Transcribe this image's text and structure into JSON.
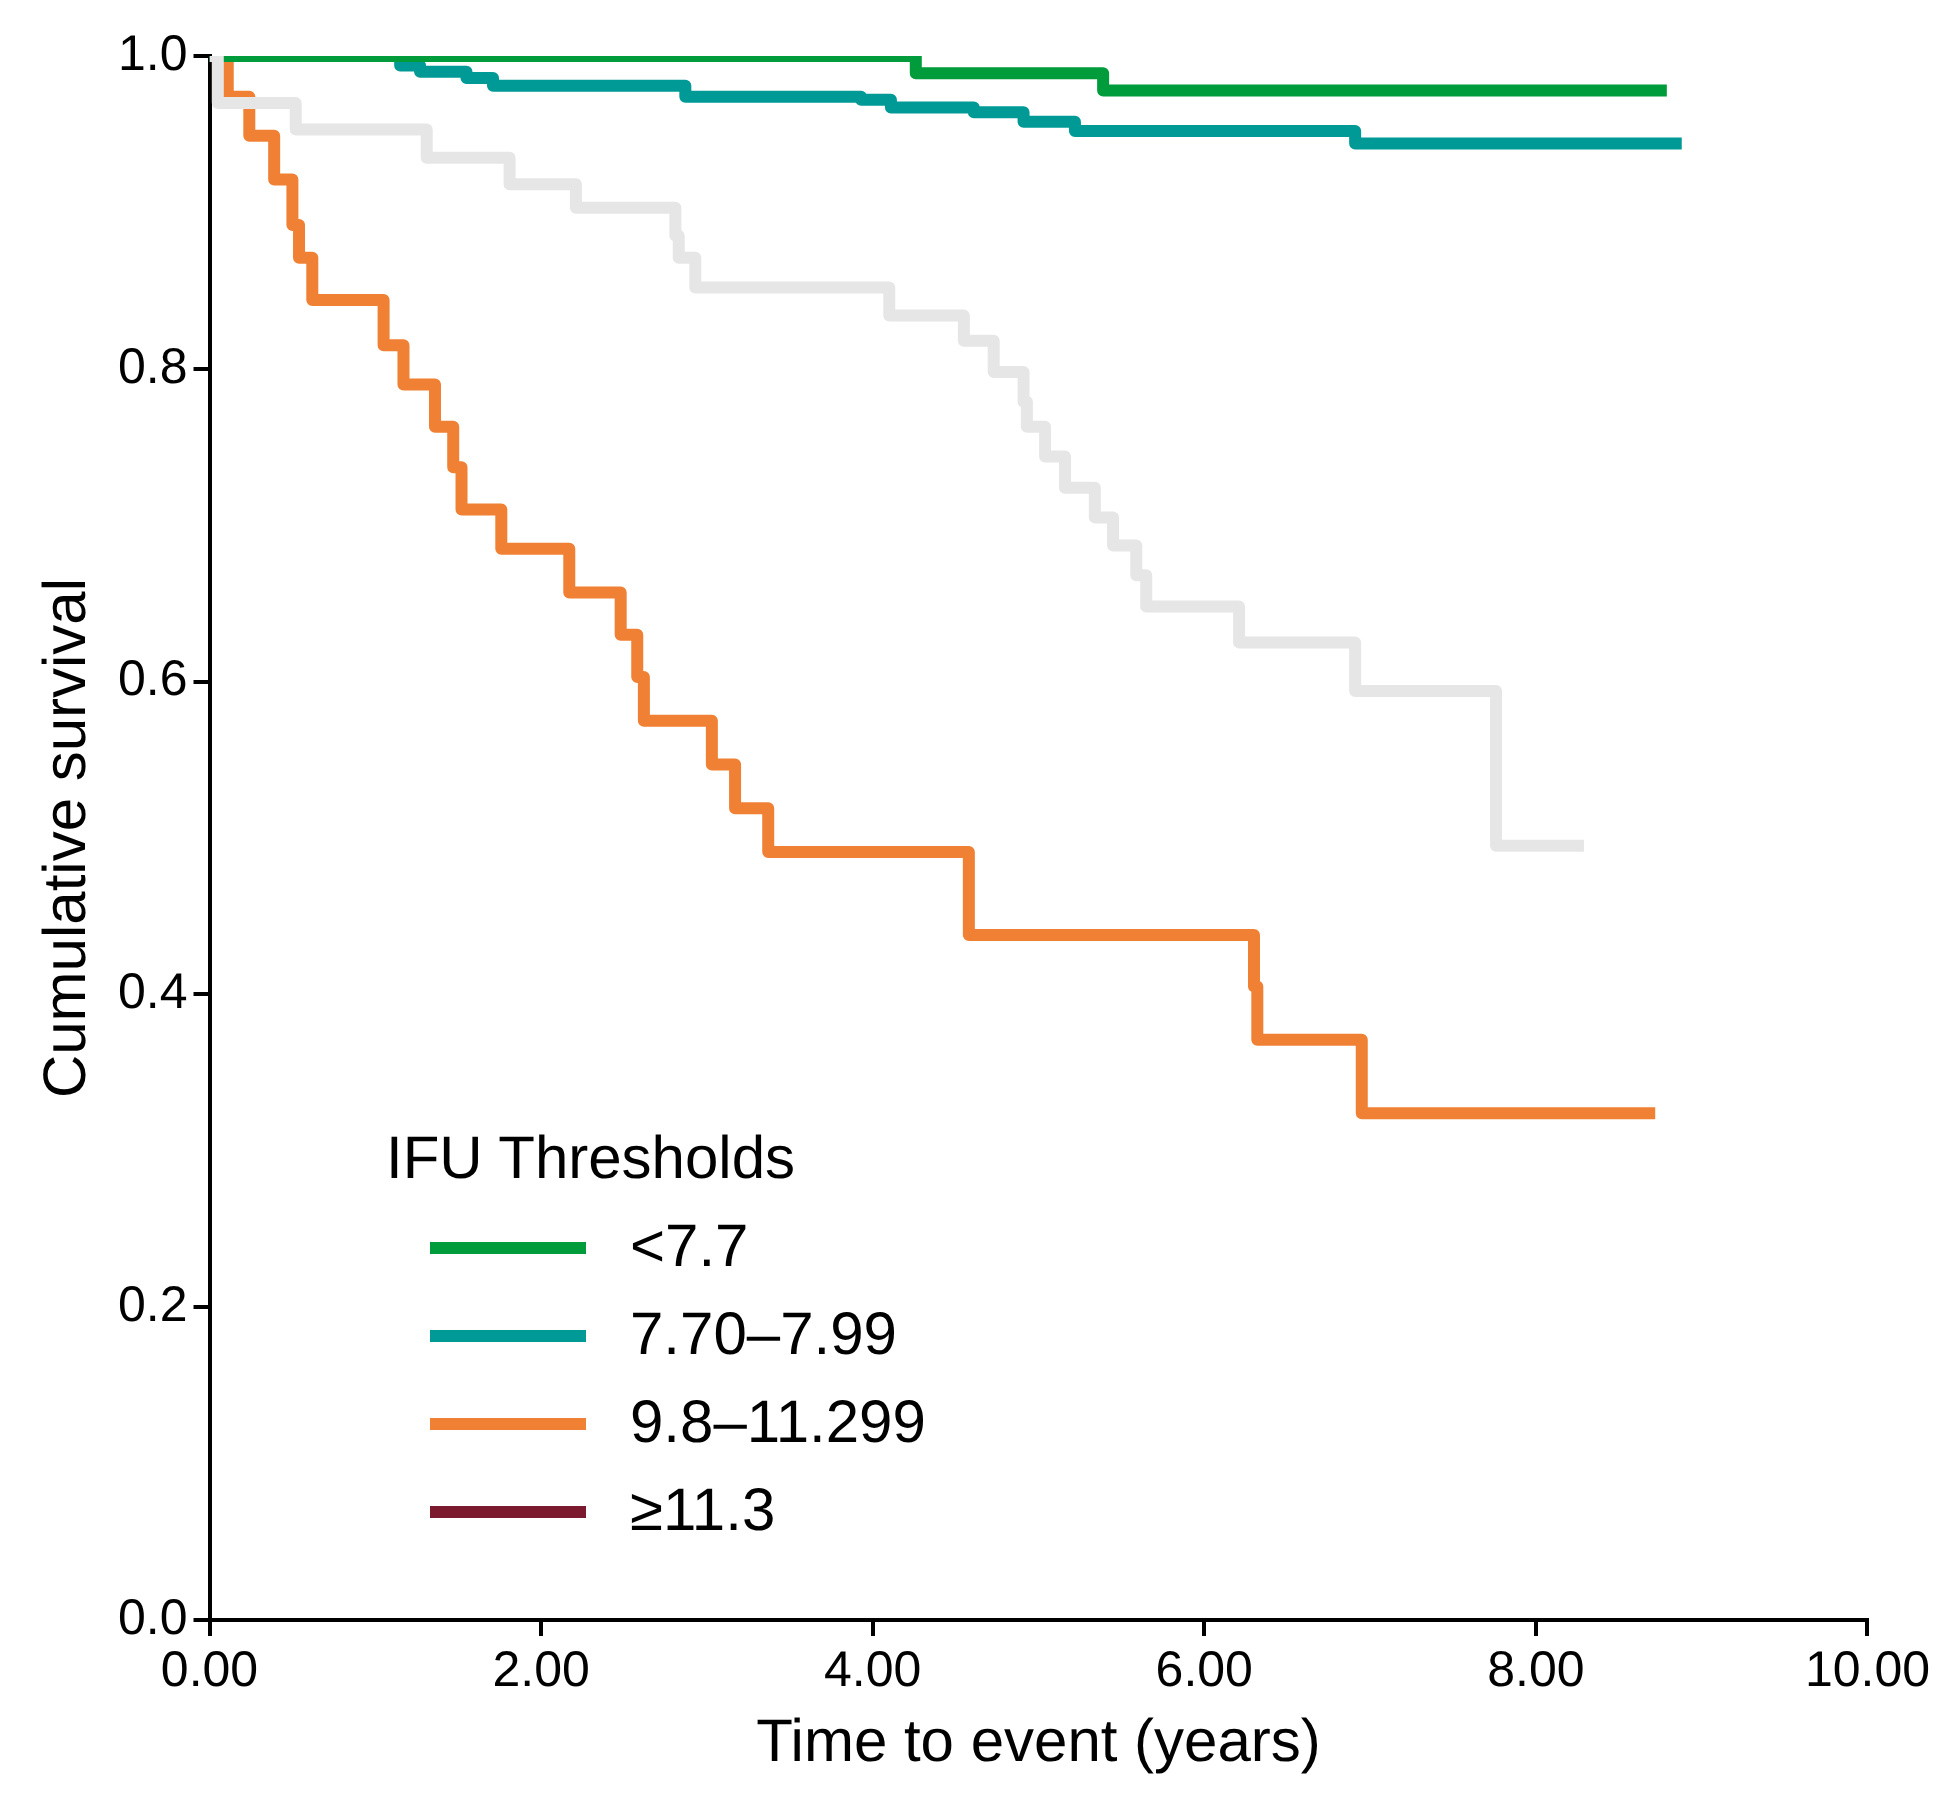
{
  "chart_data": {
    "type": "step",
    "xlabel": "Time to event (years)",
    "ylabel": "Cumulative survival",
    "legend_title": "IFU Thresholds",
    "legend": "bottom left",
    "grid": false,
    "line_style": "solid",
    "marker": "none",
    "xlim": [
      0,
      10
    ],
    "xticks": [
      {
        "value": 0,
        "label": "0.00"
      },
      {
        "value": 2,
        "label": "2.00"
      },
      {
        "value": 4,
        "label": "4.00"
      },
      {
        "value": 6,
        "label": "6.00"
      },
      {
        "value": 8,
        "label": "8.00"
      },
      {
        "value": 10,
        "label": "10.00"
      }
    ],
    "ylim": [
      0,
      1
    ],
    "yticks": [
      {
        "value": 0,
        "label": "0.0"
      },
      {
        "value": 0.2,
        "label": "0.2"
      },
      {
        "value": 0.4,
        "label": "0.4"
      },
      {
        "value": 0.6,
        "label": "0.6"
      },
      {
        "value": 0.8,
        "label": "0.8"
      },
      {
        "value": 1,
        "label": "1.0"
      }
    ],
    "series": [
      {
        "color": "#e6e6e6",
        "x": [
          0,
          0.05,
          0.52,
          1.31,
          1.81,
          2.21,
          2.81,
          2.83,
          2.93,
          4.1,
          4.55,
          4.73,
          4.91,
          4.93,
          5.04,
          5.16,
          5.34,
          5.45,
          5.59,
          5.65,
          6.21,
          6.91,
          7.76,
          8.29
        ],
        "values": [
          1,
          0.97,
          0.953,
          0.935,
          0.918,
          0.903,
          0.885,
          0.871,
          0.852,
          0.834,
          0.818,
          0.798,
          0.779,
          0.763,
          0.744,
          0.724,
          0.705,
          0.687,
          0.668,
          0.648,
          0.625,
          0.594,
          0.495,
          0.495
        ]
      },
      {
        "name": "<7.7",
        "color": "#009b3a",
        "x": [
          0,
          4.26,
          5.39,
          8.79
        ],
        "values": [
          1,
          0.989,
          0.978,
          0.978
        ]
      },
      {
        "name": "7.70–7.99",
        "color": "#009a96",
        "x": [
          0,
          1.15,
          1.27,
          1.55,
          1.71,
          2.87,
          3.93,
          4.11,
          4.61,
          4.91,
          5.22,
          6.91,
          8.88
        ],
        "values": [
          1,
          0.994,
          0.99,
          0.986,
          0.981,
          0.974,
          0.972,
          0.967,
          0.964,
          0.958,
          0.952,
          0.944,
          0.944
        ]
      },
      {
        "name": "9.8–11.299",
        "color": "#f08033",
        "x": [
          0.1,
          0.11,
          0.24,
          0.39,
          0.5,
          0.54,
          0.62,
          1.05,
          1.17,
          1.36,
          1.47,
          1.52,
          1.76,
          2.17,
          2.48,
          2.58,
          2.62,
          3.03,
          3.17,
          3.37,
          4.58,
          6.3,
          6.32,
          6.95,
          8.72
        ],
        "values": [
          1,
          0.974,
          0.949,
          0.921,
          0.892,
          0.871,
          0.844,
          0.815,
          0.79,
          0.763,
          0.737,
          0.71,
          0.685,
          0.657,
          0.63,
          0.603,
          0.575,
          0.547,
          0.519,
          0.491,
          0.438,
          0.405,
          0.371,
          0.324,
          0.324
        ]
      },
      {
        "name": "≥11.3",
        "color": "#7b1a2e"
      }
    ]
  }
}
